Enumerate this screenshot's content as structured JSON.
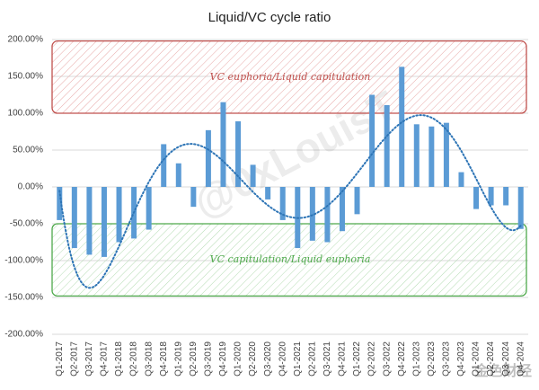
{
  "chart_data": {
    "type": "bar",
    "title": "Liquid/VC cycle ratio",
    "categories": [
      "Q1-2017",
      "Q2-2017",
      "Q3-2017",
      "Q4-2017",
      "Q1-2018",
      "Q2-2018",
      "Q3-2018",
      "Q4-2018",
      "Q1-2019",
      "Q2-2019",
      "Q3-2019",
      "Q4-2019",
      "Q1-2020",
      "Q2-2020",
      "Q3-2020",
      "Q4-2020",
      "Q1-2021",
      "Q2-2021",
      "Q3-2021",
      "Q4-2021",
      "Q1-2022",
      "Q2-2022",
      "Q3-2022",
      "Q4-2022",
      "Q1-2023",
      "Q2-2023",
      "Q3-2023",
      "Q4-2023",
      "Q1-2024",
      "Q2-2024",
      "Q3-2024",
      "Q4-2024"
    ],
    "values": [
      -45,
      -83,
      -92,
      -95,
      -75,
      -70,
      -58,
      58,
      32,
      -27,
      77,
      115,
      89,
      30,
      -17,
      -45,
      -83,
      -73,
      -75,
      -60,
      -37,
      125,
      111,
      163,
      85,
      82,
      87,
      20,
      -30,
      -25,
      -25,
      -57
    ],
    "color": "#5b9bd5",
    "ylim": [
      -200,
      200
    ],
    "yticks": [
      {
        "value": -200,
        "label": "-200.00%"
      },
      {
        "value": -150,
        "label": "-150.00%"
      },
      {
        "value": -100,
        "label": "-100.00%"
      },
      {
        "value": -50,
        "label": "-50.00%"
      },
      {
        "value": 0,
        "label": "0.00%"
      },
      {
        "value": 50,
        "label": "50.00%"
      },
      {
        "value": 100,
        "label": "100.00%"
      },
      {
        "value": 150,
        "label": "150.00%"
      },
      {
        "value": 200,
        "label": "200.00%"
      }
    ],
    "grid": true,
    "trendline": {
      "kind": "polynomial",
      "order": 6,
      "color": "#2e75b6"
    },
    "regions": [
      {
        "label": "VC euphoria/Liquid capitulation",
        "from": 100,
        "to": 198,
        "color": "#c0504d"
      },
      {
        "label": "VC capitulation/Liquid euphoria",
        "from": -50,
        "to": -148,
        "color": "#4ea94b"
      }
    ],
    "watermark": "@0xLouisT",
    "logo": "金色财经"
  }
}
